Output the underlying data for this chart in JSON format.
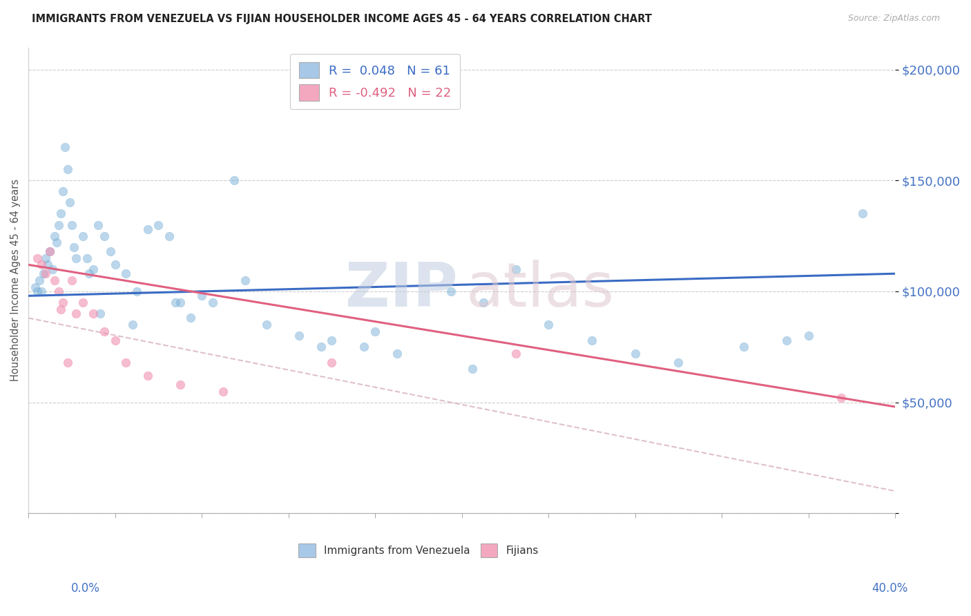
{
  "title": "IMMIGRANTS FROM VENEZUELA VS FIJIAN HOUSEHOLDER INCOME AGES 45 - 64 YEARS CORRELATION CHART",
  "source": "Source: ZipAtlas.com",
  "ylabel": "Householder Income Ages 45 - 64 years",
  "watermark_zip": "ZIP",
  "watermark_atlas": "atlas",
  "legend1_label": "R =  0.048   N = 61",
  "legend2_label": "R = -0.492   N = 22",
  "legend1_patch_color": "#a8c8e8",
  "legend2_patch_color": "#f4a8c0",
  "blue_scatter_color": "#7ab0d8",
  "pink_scatter_color": "#f090b0",
  "blue_line_color": "#3a6bc4",
  "pink_line_color": "#e06080",
  "pink_dashed_color": "#d8b0c0",
  "ytick_color": "#4472c4",
  "xtick_color": "#4472c4",
  "background_color": "#ffffff",
  "blue_line_x0": 0.0,
  "blue_line_y0": 98000,
  "blue_line_x1": 40.0,
  "blue_line_y1": 108000,
  "pink_line_x0": 0.0,
  "pink_line_y0": 112000,
  "pink_line_x1": 40.0,
  "pink_line_y1": 48000,
  "pink_dash_x0": 0.0,
  "pink_dash_y0": 88000,
  "pink_dash_x1": 40.0,
  "pink_dash_y1": 10000,
  "blue_points_x": [
    0.3,
    0.4,
    0.5,
    0.6,
    0.7,
    0.8,
    0.9,
    1.0,
    1.1,
    1.2,
    1.3,
    1.4,
    1.5,
    1.6,
    1.7,
    1.8,
    1.9,
    2.0,
    2.1,
    2.2,
    2.5,
    2.7,
    3.0,
    3.2,
    3.5,
    3.8,
    4.0,
    4.5,
    5.0,
    6.0,
    6.5,
    7.0,
    7.5,
    8.0,
    9.5,
    10.0,
    11.0,
    12.5,
    14.0,
    15.5,
    17.0,
    19.5,
    21.0,
    22.5,
    24.0,
    26.0,
    28.0,
    30.0,
    33.0,
    36.0,
    38.5,
    2.8,
    3.3,
    4.8,
    5.5,
    6.8,
    8.5,
    13.5,
    16.0,
    20.5,
    35.0
  ],
  "blue_points_y": [
    102000,
    100000,
    105000,
    100000,
    108000,
    115000,
    112000,
    118000,
    110000,
    125000,
    122000,
    130000,
    135000,
    145000,
    165000,
    155000,
    140000,
    130000,
    120000,
    115000,
    125000,
    115000,
    110000,
    130000,
    125000,
    118000,
    112000,
    108000,
    100000,
    130000,
    125000,
    95000,
    88000,
    98000,
    150000,
    105000,
    85000,
    80000,
    78000,
    75000,
    72000,
    100000,
    95000,
    110000,
    85000,
    78000,
    72000,
    68000,
    75000,
    80000,
    135000,
    108000,
    90000,
    85000,
    128000,
    95000,
    95000,
    75000,
    82000,
    65000,
    78000
  ],
  "pink_points_x": [
    0.4,
    0.6,
    0.8,
    1.0,
    1.2,
    1.4,
    1.6,
    1.8,
    2.0,
    2.5,
    3.0,
    3.5,
    4.0,
    4.5,
    5.5,
    7.0,
    9.0,
    14.0,
    22.5,
    37.5,
    2.2,
    1.5
  ],
  "pink_points_y": [
    115000,
    112000,
    108000,
    118000,
    105000,
    100000,
    95000,
    68000,
    105000,
    95000,
    90000,
    82000,
    78000,
    68000,
    62000,
    58000,
    55000,
    68000,
    72000,
    52000,
    90000,
    92000
  ],
  "xmin": 0.0,
  "xmax": 40.0,
  "ymin": 0,
  "ymax": 210000,
  "yticks": [
    0,
    50000,
    100000,
    150000,
    200000
  ],
  "ytick_labels": [
    "",
    "$50,000",
    "$100,000",
    "$150,000",
    "$200,000"
  ]
}
